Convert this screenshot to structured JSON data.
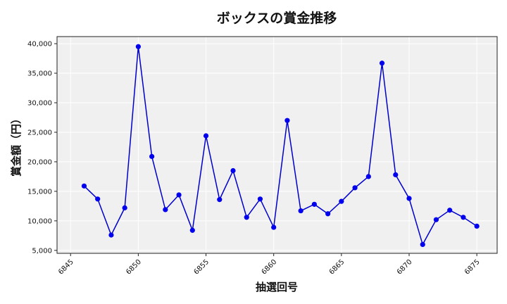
{
  "chart_data": {
    "type": "line",
    "title": "ボックスの賞金推移",
    "xlabel": "抽選回号",
    "ylabel": "賞金額（円）",
    "xlim": [
      6844.0,
      6876.5
    ],
    "ylim": [
      4500,
      41200
    ],
    "x_ticks": [
      6845,
      6850,
      6855,
      6860,
      6865,
      6870,
      6875
    ],
    "y_ticks": [
      5000,
      10000,
      15000,
      20000,
      25000,
      30000,
      35000,
      40000
    ],
    "y_tick_labels": [
      "5,000",
      "10,000",
      "15,000",
      "20,000",
      "25,000",
      "30,000",
      "35,000",
      "40,000"
    ],
    "grid": true,
    "series": [
      {
        "color": "#0000cc",
        "marker_color": "#0000ee",
        "x": [
          6846,
          6847,
          6848,
          6849,
          6850,
          6851,
          6852,
          6853,
          6854,
          6855,
          6856,
          6857,
          6858,
          6859,
          6860,
          6861,
          6862,
          6863,
          6864,
          6865,
          6866,
          6867,
          6868,
          6869,
          6870,
          6871,
          6872,
          6873,
          6874,
          6875
        ],
        "y": [
          15900,
          13700,
          7600,
          12200,
          39500,
          20900,
          11900,
          14400,
          8400,
          24400,
          13600,
          18500,
          10600,
          13700,
          8900,
          27000,
          11700,
          12800,
          11200,
          13300,
          15600,
          17500,
          36700,
          17800,
          13800,
          6000,
          10200,
          11800,
          10600,
          9100
        ]
      }
    ]
  }
}
